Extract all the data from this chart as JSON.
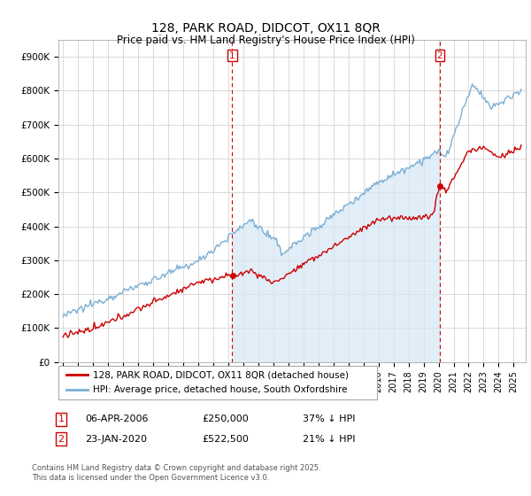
{
  "title": "128, PARK ROAD, DIDCOT, OX11 8QR",
  "subtitle": "Price paid vs. HM Land Registry's House Price Index (HPI)",
  "ylim": [
    0,
    950000
  ],
  "yticks": [
    0,
    100000,
    200000,
    300000,
    400000,
    500000,
    600000,
    700000,
    800000,
    900000
  ],
  "ytick_labels": [
    "£0",
    "£100K",
    "£200K",
    "£300K",
    "£400K",
    "£500K",
    "£600K",
    "£700K",
    "£800K",
    "£900K"
  ],
  "hpi_color": "#7bafd4",
  "hpi_fill_color": "#d6e8f5",
  "price_color": "#cc0000",
  "annotation_color": "#cc0000",
  "sale1_x": 2006.27,
  "sale1_price": 250000,
  "sale1_label": "1",
  "sale1_text": "06-APR-2006",
  "sale1_price_text": "£250,000",
  "sale1_pct_text": "37% ↓ HPI",
  "sale2_x": 2020.07,
  "sale2_price": 522500,
  "sale2_label": "2",
  "sale2_text": "23-JAN-2020",
  "sale2_price_text": "£522,500",
  "sale2_pct_text": "21% ↓ HPI",
  "legend1": "128, PARK ROAD, DIDCOT, OX11 8QR (detached house)",
  "legend2": "HPI: Average price, detached house, South Oxfordshire",
  "footnote": "Contains HM Land Registry data © Crown copyright and database right 2025.\nThis data is licensed under the Open Government Licence v3.0.",
  "background_color": "#ffffff",
  "grid_color": "#cccccc",
  "xlim_start": 1994.7,
  "xlim_end": 2025.8
}
